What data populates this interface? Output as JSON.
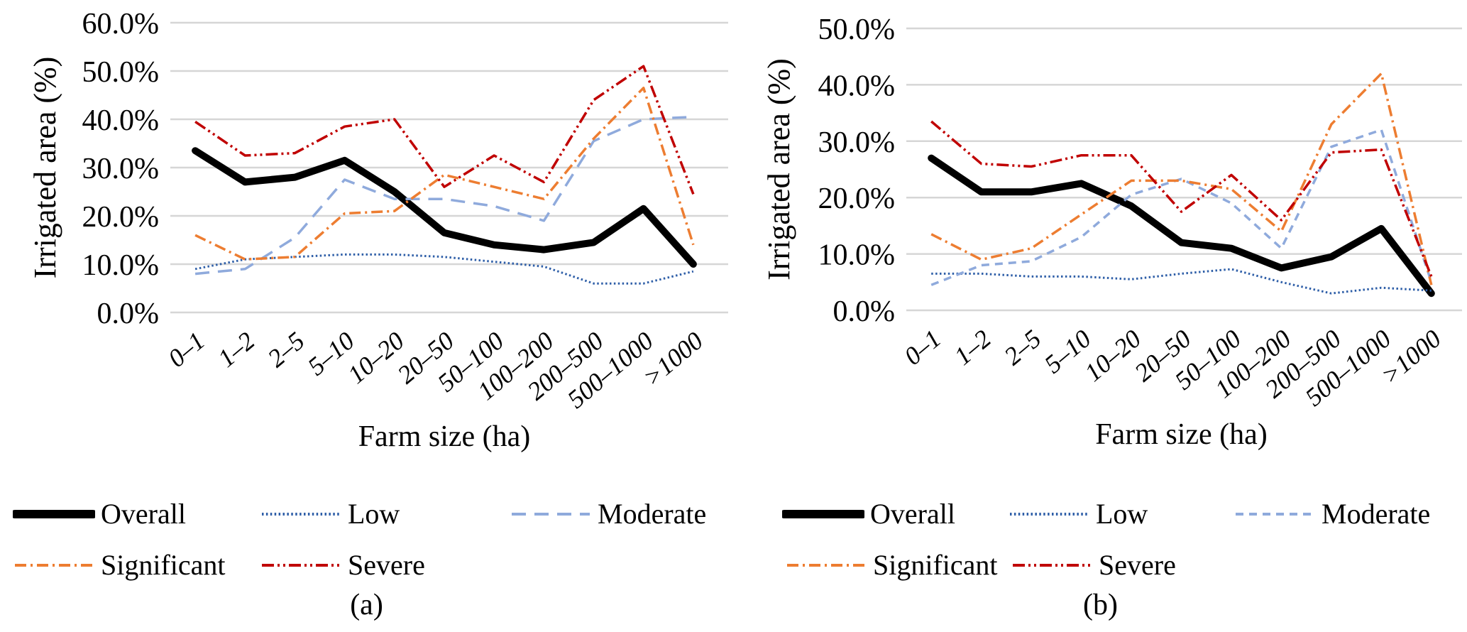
{
  "page": {
    "background": "#ffffff",
    "grid_color": "#d6d6d6"
  },
  "chart_data": [
    {
      "id": "a",
      "type": "line",
      "caption": "(a)",
      "xlabel": "Farm size (ha)",
      "ylabel": "Irrigated area (%)",
      "x_categories": [
        "0–1",
        "1–2",
        "2–5",
        "5–10",
        "10–20",
        "20–50",
        "50–100",
        "100–200",
        "200–500",
        "500–1000",
        ">1000"
      ],
      "y_ticks": [
        "60.0%",
        "50.0%",
        "40.0%",
        "30.0%",
        "20.0%",
        "10.0%",
        "0.0%"
      ],
      "ylim": [
        0,
        60
      ],
      "grid": true,
      "legend_position": "bottom",
      "series": [
        {
          "name": "Overall",
          "color": "#000000",
          "dash": [],
          "width": 10,
          "values": [
            33.5,
            27,
            28,
            31.5,
            25,
            16.5,
            14,
            13,
            14.5,
            21.5,
            10
          ]
        },
        {
          "name": "Low",
          "color": "#2f5fa8",
          "dash": [
            2.5,
            3.4
          ],
          "width": 3,
          "values": [
            9,
            11,
            11.5,
            12,
            12,
            11.5,
            10.5,
            9.5,
            6,
            6,
            8.5
          ]
        },
        {
          "name": "Moderate",
          "color": "#8faadc",
          "dash": [
            20,
            12
          ],
          "width": 3.5,
          "values": [
            8,
            9,
            15.5,
            27.5,
            23.5,
            23.5,
            22,
            19,
            35.5,
            40,
            40.5
          ]
        },
        {
          "name": "Significant",
          "color": "#ed7d31",
          "dash": [
            16,
            6,
            3,
            6
          ],
          "width": 3.5,
          "values": [
            16,
            11,
            11.5,
            20.5,
            21,
            28.5,
            26,
            23.5,
            36,
            46.5,
            14
          ]
        },
        {
          "name": "Severe",
          "color": "#c00000",
          "dash": [
            17,
            5,
            3,
            5,
            3,
            5
          ],
          "width": 3.5,
          "values": [
            39.5,
            32.5,
            33,
            38.5,
            40,
            26,
            32.5,
            27,
            44,
            51,
            24.5
          ]
        }
      ]
    },
    {
      "id": "b",
      "type": "line",
      "caption": "(b)",
      "xlabel": "Farm size (ha)",
      "ylabel": "Irrigated area (%)",
      "x_categories": [
        "0–1",
        "1–2",
        "2–5",
        "5–10",
        "10–20",
        "20–50",
        "50–100",
        "100–200",
        "200–500",
        "500–1000",
        ">1000"
      ],
      "y_ticks": [
        "50.0%",
        "40.0%",
        "30.0%",
        "20.0%",
        "10.0%",
        "0.0%"
      ],
      "ylim": [
        0,
        50
      ],
      "grid": true,
      "legend_position": "bottom",
      "series": [
        {
          "name": "Overall",
          "color": "#000000",
          "dash": [],
          "width": 10,
          "values": [
            27,
            21,
            21,
            22.5,
            18.5,
            12,
            11,
            7.5,
            9.5,
            14.5,
            3
          ]
        },
        {
          "name": "Low",
          "color": "#2f5fa8",
          "dash": [
            2.5,
            3.4
          ],
          "width": 3,
          "values": [
            6.5,
            6.5,
            6,
            6,
            5.5,
            6.5,
            7.3,
            5,
            3,
            4,
            3.5
          ]
        },
        {
          "name": "Moderate",
          "color": "#8faadc",
          "dash": [
            11,
            8
          ],
          "width": 3.5,
          "values": [
            4.5,
            8,
            8.7,
            13,
            20.5,
            23.3,
            19,
            11,
            29,
            32,
            5
          ]
        },
        {
          "name": "Significant",
          "color": "#ed7d31",
          "dash": [
            16,
            6,
            3,
            6
          ],
          "width": 3.5,
          "values": [
            13.5,
            9,
            11,
            17,
            23,
            23,
            21.5,
            14,
            33,
            42,
            4.5
          ]
        },
        {
          "name": "Severe",
          "color": "#c00000",
          "dash": [
            17,
            5,
            3,
            5,
            3,
            5
          ],
          "width": 3.5,
          "values": [
            33.5,
            26,
            25.5,
            27.5,
            27.5,
            17.5,
            24,
            16,
            28,
            28.5,
            6
          ]
        }
      ]
    }
  ]
}
